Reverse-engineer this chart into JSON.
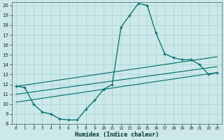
{
  "xlabel": "Humidex (Indice chaleur)",
  "xlim": [
    0,
    23
  ],
  "ylim": [
    8,
    20
  ],
  "xticks": [
    0,
    1,
    2,
    3,
    4,
    5,
    6,
    7,
    8,
    9,
    10,
    11,
    12,
    13,
    14,
    15,
    16,
    17,
    18,
    19,
    20,
    21,
    22,
    23
  ],
  "yticks": [
    8,
    9,
    10,
    11,
    12,
    13,
    14,
    15,
    16,
    17,
    18,
    19,
    20
  ],
  "main_x": [
    0,
    1,
    2,
    3,
    4,
    5,
    6,
    7,
    8,
    9,
    10,
    11,
    12,
    13,
    14,
    15,
    16,
    17,
    18,
    19,
    20,
    21,
    22,
    23
  ],
  "main_y": [
    11.8,
    11.7,
    10.0,
    9.2,
    9.0,
    8.5,
    8.4,
    8.4,
    9.5,
    10.4,
    11.5,
    12.0,
    17.8,
    19.0,
    20.2,
    20.0,
    17.2,
    15.1,
    14.7,
    14.5,
    14.5,
    14.0,
    13.0,
    13.2
  ],
  "line_color": "#006b6b",
  "bg_color": "#cce8e8",
  "grid_color": "#b0d8d8",
  "trend_lines": [
    {
      "x": [
        0,
        23
      ],
      "y": [
        11.8,
        14.8
      ]
    },
    {
      "x": [
        0,
        23
      ],
      "y": [
        11.0,
        13.8
      ]
    },
    {
      "x": [
        0,
        23
      ],
      "y": [
        10.2,
        13.2
      ]
    }
  ]
}
